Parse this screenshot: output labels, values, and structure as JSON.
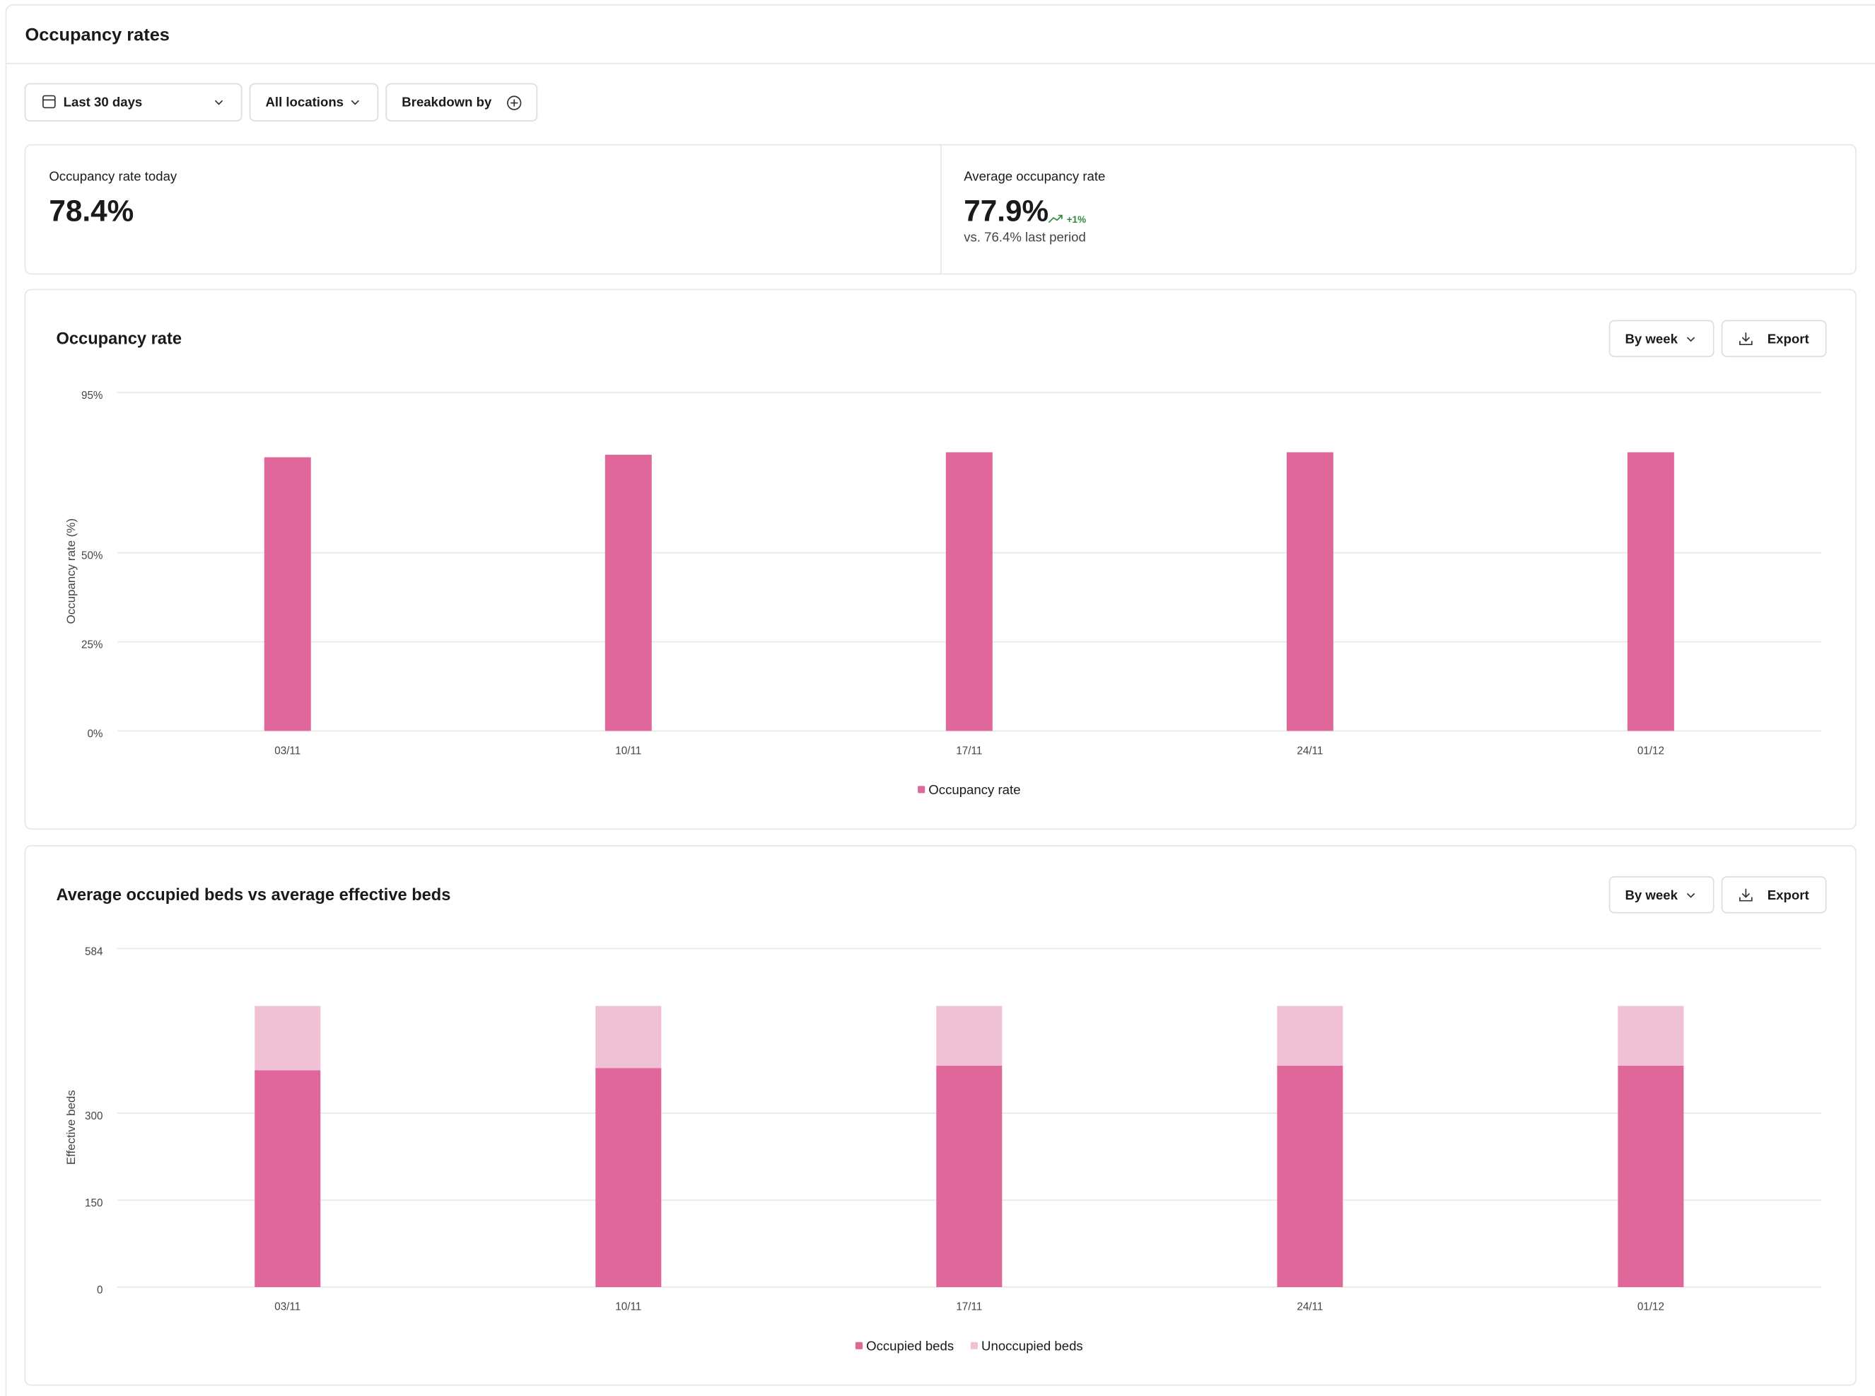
{
  "header": {
    "title": "Occupancy rates"
  },
  "filters": [
    "Last 30 days",
    "All locations",
    "Breakdown by"
  ],
  "kpis": [
    {
      "label": "Occupancy rate today",
      "value": "78.4%"
    },
    {
      "label": "Average occupancy rate",
      "value": "77.9%",
      "change": "+1%",
      "comparison": "vs. 76.4% last period"
    }
  ],
  "chart_controls": [
    [
      "By week",
      "Export"
    ],
    [
      "By week",
      "Export"
    ]
  ],
  "chart_data": [
    {
      "type": "bar",
      "title": "Occupancy rate",
      "y_label": "Occupancy rate (%)",
      "categories": [
        "03/11",
        "10/11",
        "17/11",
        "24/11",
        "01/12"
      ],
      "series": [
        {
          "name": "Occupancy rate",
          "color": "#e0679a",
          "values": [
            76.8,
            77.5,
            78.2,
            78.2,
            78.2
          ]
        }
      ],
      "ylim": [
        0,
        95
      ],
      "yticks": [
        {
          "value": 0,
          "label": "0%"
        },
        {
          "value": 25,
          "label": "25%"
        },
        {
          "value": 50,
          "label": "50%"
        },
        {
          "value": 95,
          "label": "95%"
        }
      ],
      "grid": true,
      "legend": "bottom"
    },
    {
      "type": "bar",
      "stacked": true,
      "title": "Average occupied beds vs average effective beds",
      "y_label": "Effective beds",
      "categories": [
        "03/11",
        "10/11",
        "17/11",
        "24/11",
        "01/12"
      ],
      "series": [
        {
          "name": "Occupied beds",
          "color": "#e0679a",
          "values": [
            374,
            378,
            382,
            382,
            382
          ]
        },
        {
          "name": "Unoccupied beds",
          "color": "#f0c0d4",
          "values": [
            111,
            107,
            103,
            103,
            103
          ]
        }
      ],
      "ylim": [
        0,
        584
      ],
      "yticks": [
        0,
        150,
        300,
        584
      ],
      "grid": true,
      "legend": "bottom"
    }
  ]
}
